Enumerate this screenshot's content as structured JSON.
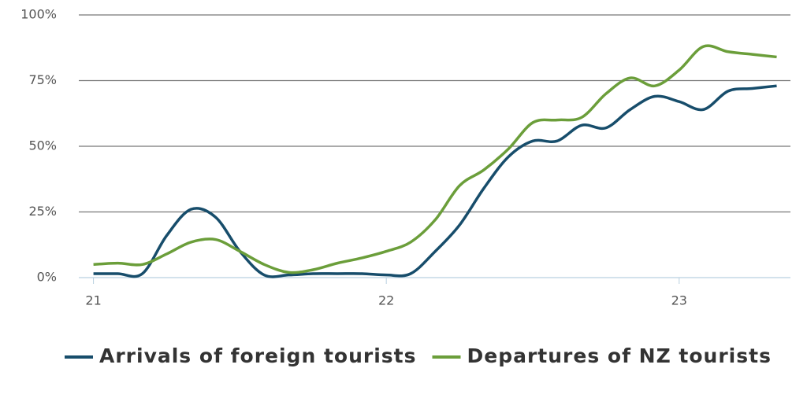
{
  "chart_data": {
    "type": "line",
    "x": [
      21,
      21.083,
      21.167,
      21.25,
      21.333,
      21.417,
      21.5,
      21.583,
      21.667,
      21.75,
      21.833,
      21.917,
      22,
      22.083,
      22.167,
      22.25,
      22.333,
      22.417,
      22.5,
      22.583,
      22.667,
      22.75,
      22.833,
      22.917,
      23,
      23.083,
      23.167,
      23.25,
      23.333
    ],
    "series": [
      {
        "name": "Arrivals of foreign tourists",
        "color": "#174d6b",
        "values": [
          1.5,
          1.5,
          1.5,
          16,
          26,
          23,
          10,
          1,
          1,
          1.5,
          1.5,
          1.5,
          1,
          1.5,
          10,
          20,
          34,
          46,
          52,
          52,
          58,
          57,
          64,
          69,
          67,
          64,
          71,
          72,
          73
        ]
      },
      {
        "name": "Departures of NZ tourists",
        "color": "#6b9e3a",
        "values": [
          5,
          5.5,
          5,
          9,
          13.5,
          14.5,
          10,
          5,
          2,
          3,
          5.5,
          7.5,
          10,
          13.5,
          22,
          35,
          41,
          49,
          59,
          60,
          61,
          70,
          76,
          73,
          79,
          88,
          86,
          85,
          84
        ]
      }
    ],
    "xlim": [
      20.95,
      23.38
    ],
    "xticks": [
      21,
      22,
      23
    ],
    "ylim": [
      0,
      100
    ],
    "yticks": [
      {
        "value": 0,
        "label": "0%"
      },
      {
        "value": 25,
        "label": "25%"
      },
      {
        "value": 50,
        "label": "50%"
      },
      {
        "value": 75,
        "label": "75%"
      },
      {
        "value": 100,
        "label": "100%"
      }
    ],
    "grid": true,
    "legend": "bottom"
  }
}
